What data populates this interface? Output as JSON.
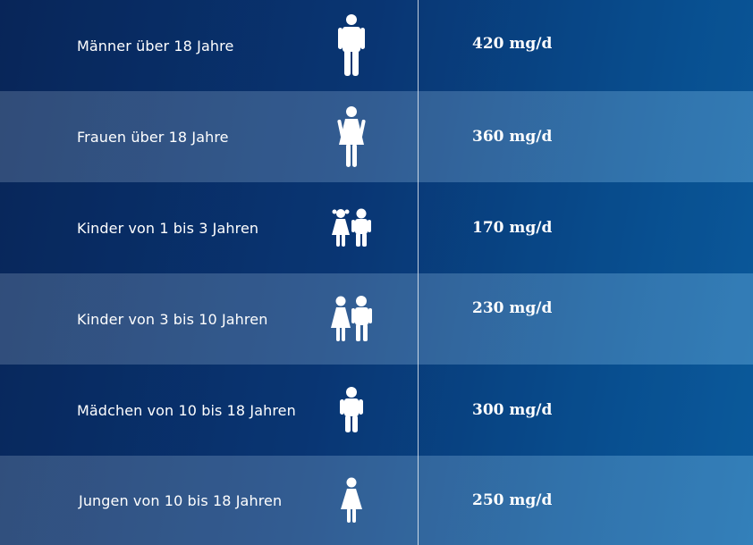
{
  "rows": [
    {
      "label": "Männer über 18 Jahre",
      "value": "420 mg/d",
      "icon": "man-icon"
    },
    {
      "label": "Frauen über 18 Jahre",
      "value": "360 mg/d",
      "icon": "woman-icon"
    },
    {
      "label": "Kinder von 1 bis 3 Jahren",
      "value": "170 mg/d",
      "icon": "small-children-icon"
    },
    {
      "label": "Kinder von 3 bis 10 Jahren",
      "value": "230 mg/d",
      "icon": "children-icon"
    },
    {
      "label": "Mädchen von 10 bis 18 Jahren",
      "value": "300 mg/d",
      "icon": "boy-icon"
    },
    {
      "label": "Jungen von 10 bis 18 Jahren",
      "value": "250 mg/d",
      "icon": "girl-icon"
    }
  ],
  "colors": {
    "background_start": "#0a2a5e",
    "background_end": "#0d68ad",
    "text": "#ffffff"
  }
}
